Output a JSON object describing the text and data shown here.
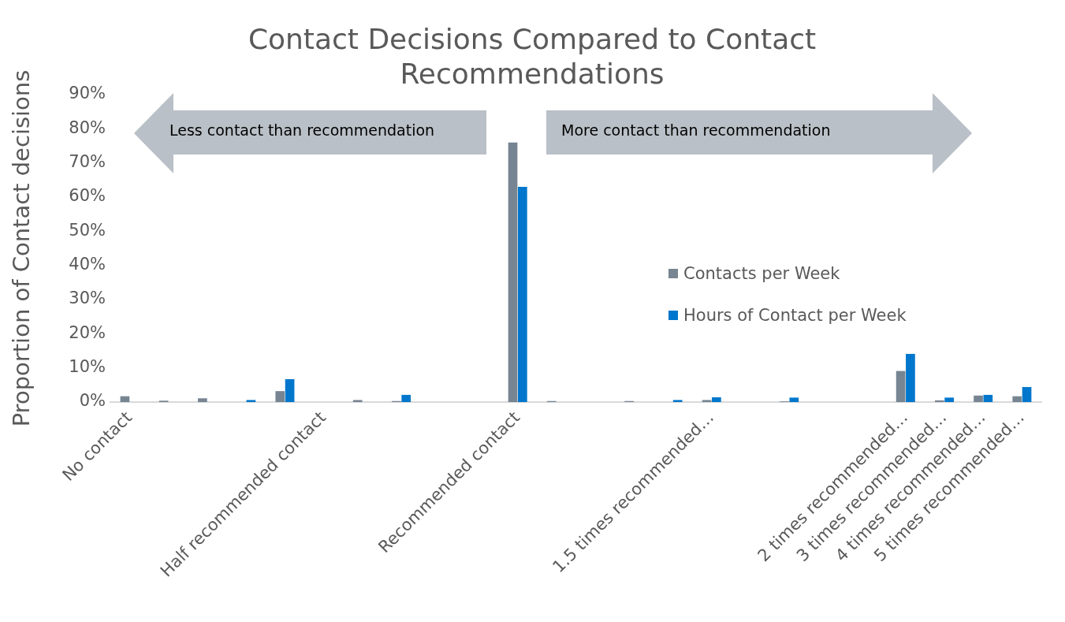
{
  "chart_data": {
    "type": "bar",
    "title": "Contact Decisions Compared to Contact Recommendations",
    "ylabel": "Proportion of Contact decisions",
    "categories": [
      "No contact",
      null,
      null,
      null,
      null,
      "Half recommended contact",
      null,
      null,
      null,
      null,
      "Recommended contact",
      null,
      null,
      null,
      null,
      "1.5 times recommended…",
      null,
      null,
      null,
      null,
      "2 times recommended…",
      "3 times recommended…",
      "4 times recommended…",
      "5 times recommended…"
    ],
    "series": [
      {
        "name": "Contacts per Week",
        "color": "#778592",
        "values": [
          1.7,
          0.4,
          1.1,
          null,
          3.2,
          null,
          0.6,
          0.3,
          null,
          null,
          76,
          0.3,
          null,
          0.3,
          null,
          0.6,
          null,
          0.2,
          null,
          null,
          9.1,
          0.5,
          1.9,
          1.7
        ]
      },
      {
        "name": "Hours of Contact per Week",
        "color": "#0077cc",
        "values": [
          null,
          null,
          null,
          0.6,
          6.7,
          null,
          null,
          2.1,
          null,
          null,
          63,
          null,
          null,
          null,
          0.6,
          1.4,
          null,
          1.3,
          null,
          null,
          14.1,
          1.3,
          2.1,
          4.4
        ]
      }
    ],
    "ylim": [
      0,
      90
    ],
    "yticks": [
      {
        "value": 0,
        "label": "0%"
      },
      {
        "value": 10,
        "label": "10%"
      },
      {
        "value": 20,
        "label": "20%"
      },
      {
        "value": 30,
        "label": "30%"
      },
      {
        "value": 40,
        "label": "40%"
      },
      {
        "value": 50,
        "label": "50%"
      },
      {
        "value": 60,
        "label": "60%"
      },
      {
        "value": 70,
        "label": "70%"
      },
      {
        "value": 80,
        "label": "80%"
      },
      {
        "value": 90,
        "label": "90%"
      }
    ],
    "grid": false,
    "legend": "right",
    "annotations": [
      "Less contact than recommendation",
      "More contact than recommendation"
    ]
  }
}
